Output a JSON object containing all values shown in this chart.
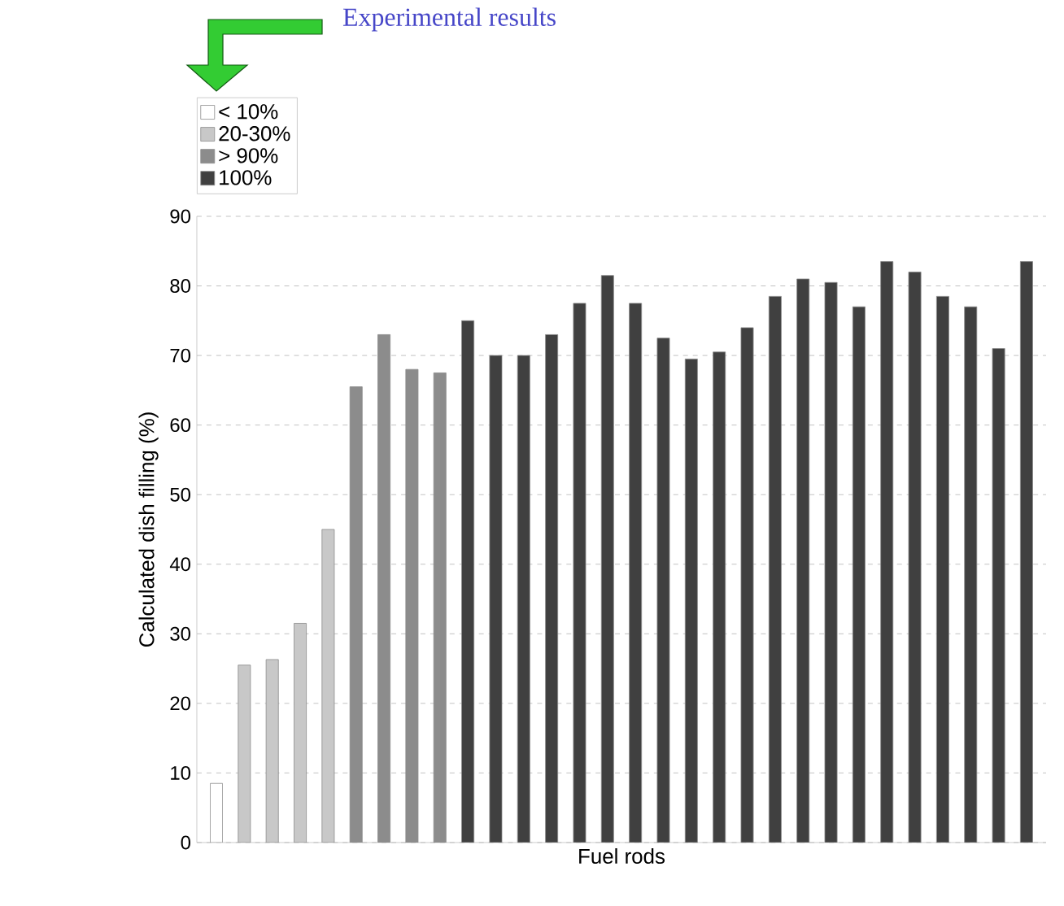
{
  "chart_data": {
    "type": "bar",
    "xlabel": "Fuel rods",
    "ylabel": "Calculated dish filling (%)",
    "annotations": [
      "Experimental results"
    ],
    "categories": [
      null,
      null,
      null,
      null,
      null,
      null,
      null,
      null,
      null,
      null,
      null,
      null,
      null,
      null,
      null,
      null,
      null,
      null,
      null,
      null,
      null,
      null,
      null,
      null,
      null,
      null,
      null,
      null,
      null,
      null
    ],
    "series": [
      {
        "name": "< 10%",
        "color": "#ffffff",
        "values": [
          8.5,
          null,
          null,
          null,
          null,
          null,
          null,
          null,
          null,
          null,
          null,
          null,
          null,
          null,
          null,
          null,
          null,
          null,
          null,
          null,
          null,
          null,
          null,
          null,
          null,
          null,
          null,
          null,
          null,
          null
        ]
      },
      {
        "name": "20-30%",
        "color": "#c8c8c8",
        "values": [
          null,
          25.5,
          26.3,
          31.5,
          45,
          null,
          null,
          null,
          null,
          null,
          null,
          null,
          null,
          null,
          null,
          null,
          null,
          null,
          null,
          null,
          null,
          null,
          null,
          null,
          null,
          null,
          null,
          null,
          null,
          null
        ]
      },
      {
        "name": "> 90%",
        "color": "#8c8c8c",
        "values": [
          null,
          null,
          null,
          null,
          null,
          65.5,
          73,
          68,
          67.5,
          null,
          null,
          null,
          null,
          null,
          null,
          null,
          null,
          null,
          null,
          null,
          null,
          null,
          null,
          null,
          null,
          null,
          null,
          null,
          null,
          null
        ]
      },
      {
        "name": "100%",
        "color": "#404040",
        "values": [
          null,
          null,
          null,
          null,
          null,
          null,
          null,
          null,
          null,
          75,
          70,
          70,
          73,
          77.5,
          81.5,
          77.5,
          72.5,
          69.5,
          70.5,
          74,
          78.5,
          81,
          80.5,
          77,
          83.5,
          82,
          78.5,
          77,
          71,
          83.5
        ]
      }
    ],
    "ylim": [
      0,
      90
    ],
    "yticks": [
      0,
      10,
      20,
      30,
      40,
      50,
      60,
      70,
      80,
      90
    ],
    "grid": "y",
    "legend": "top left",
    "tick_labels": "y"
  }
}
